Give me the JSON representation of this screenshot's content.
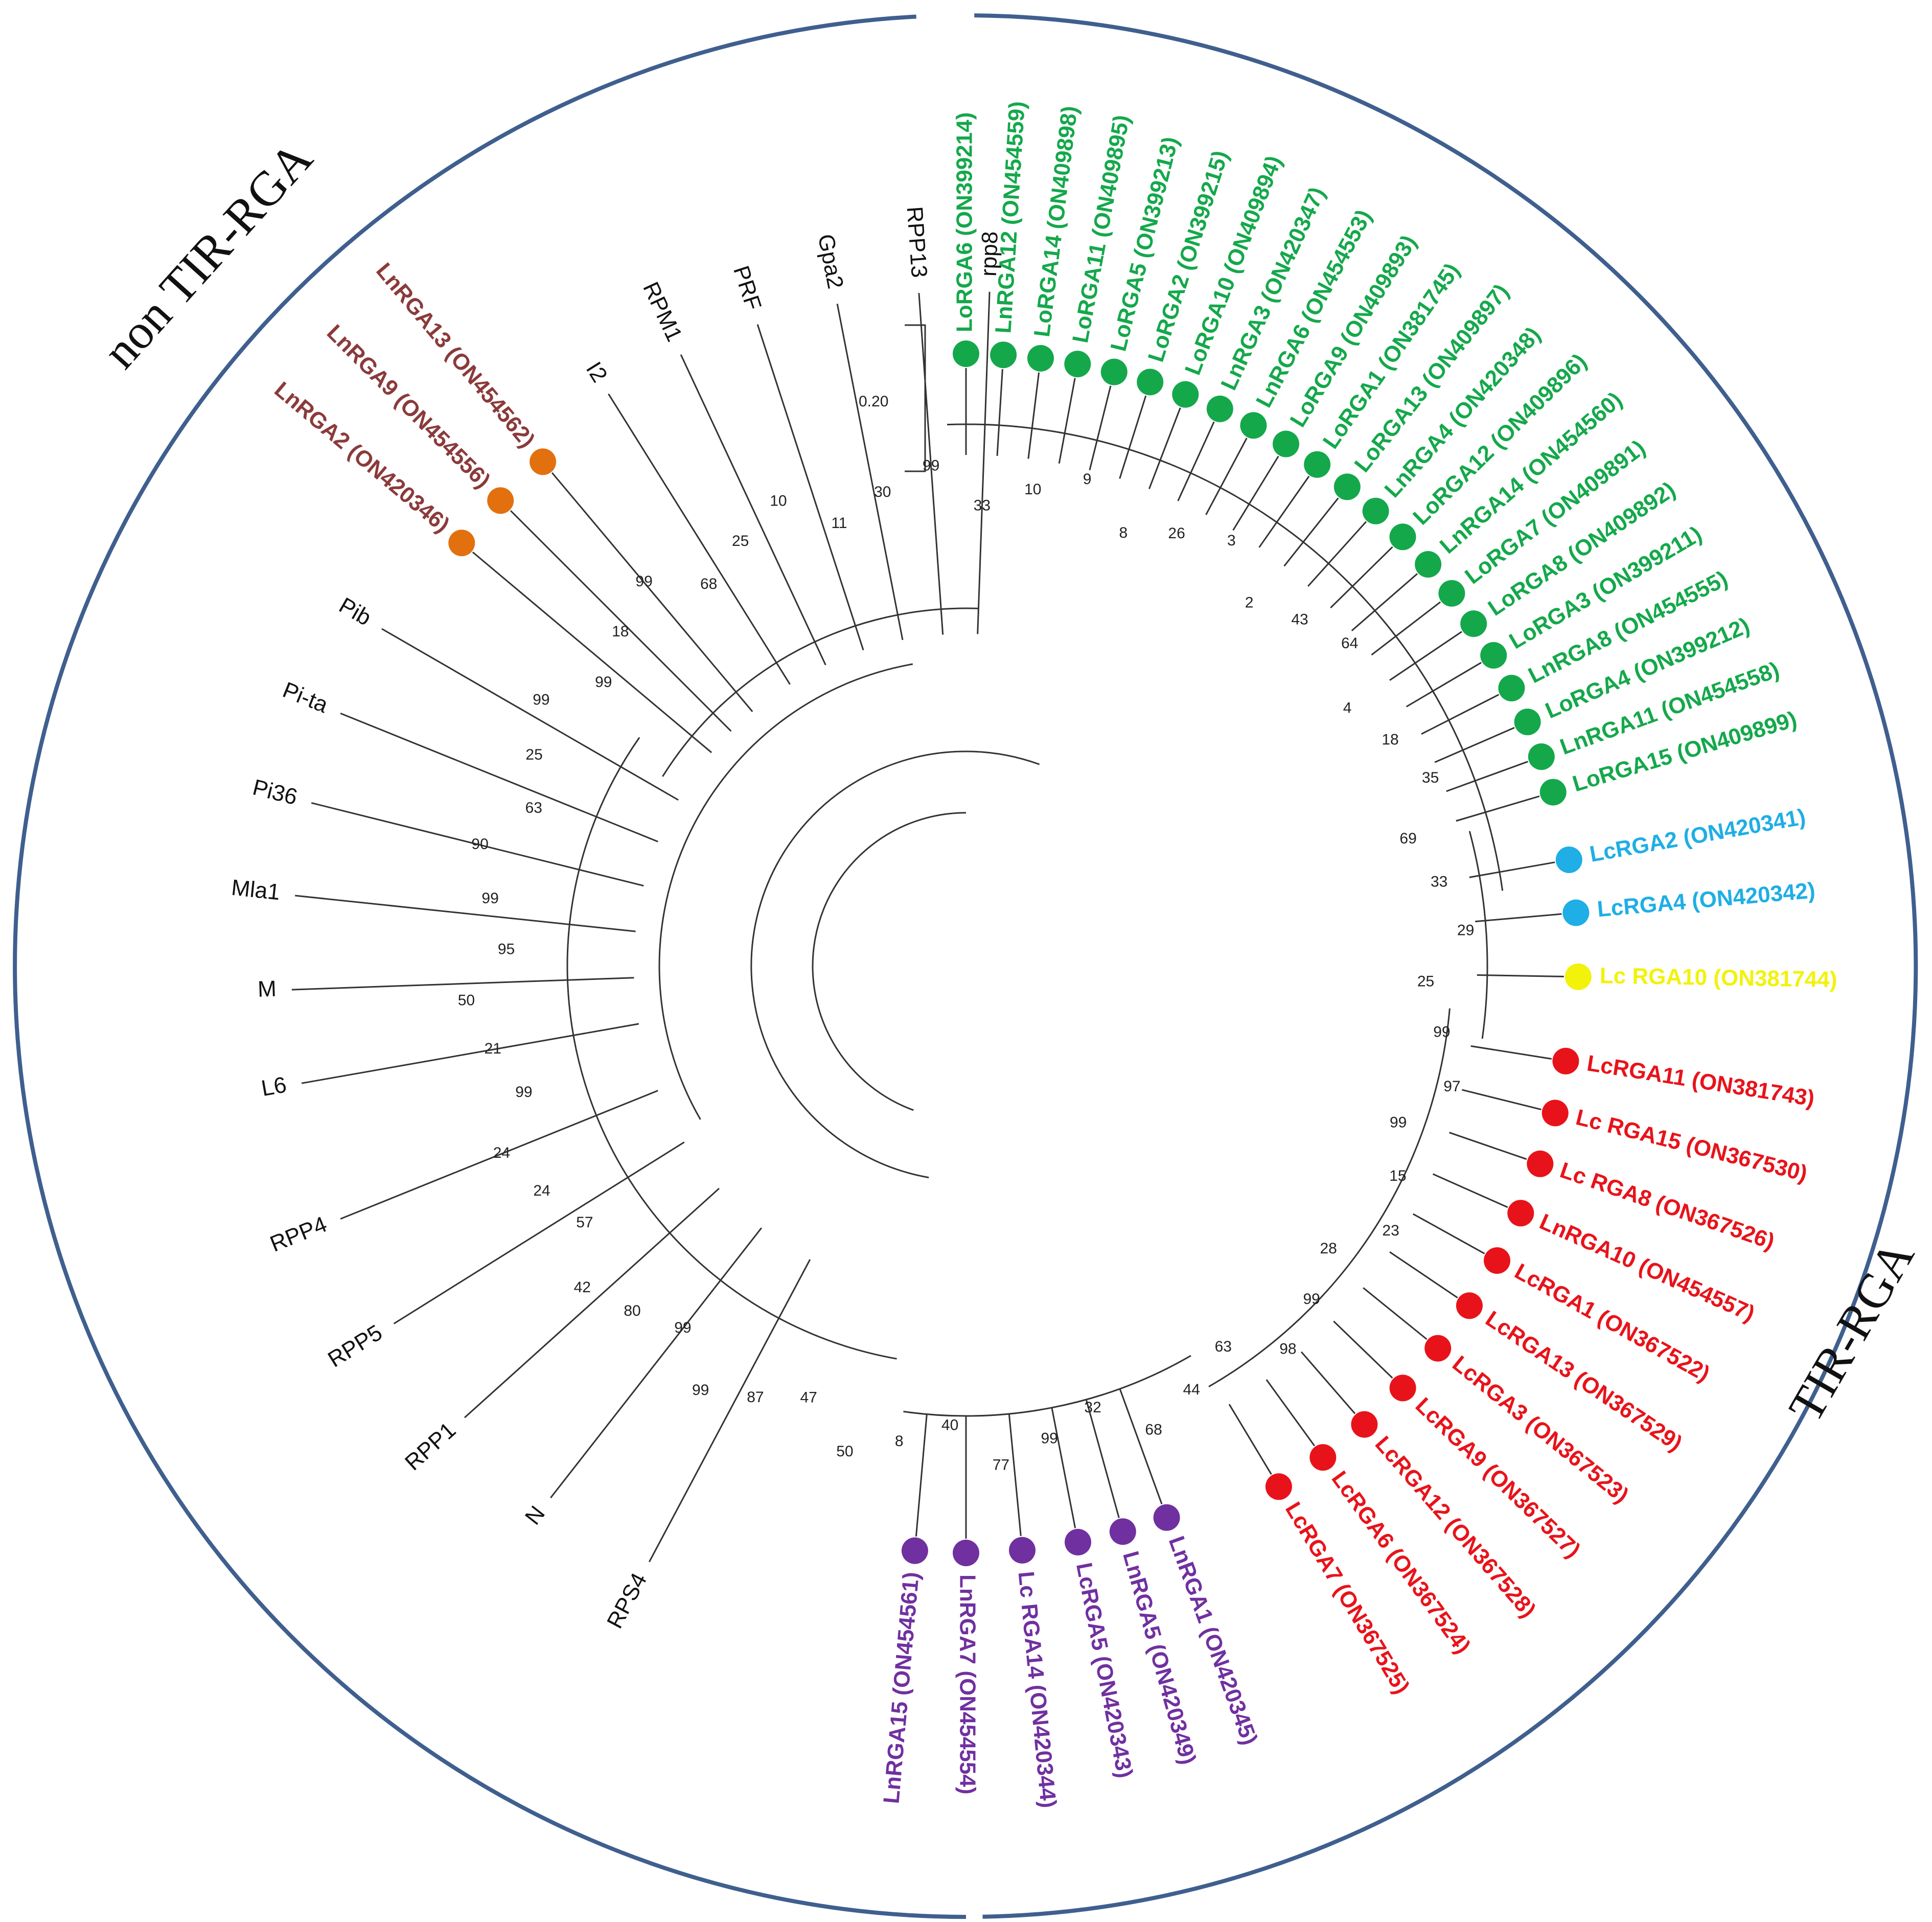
{
  "clades": {
    "non_tir": "non TIR-RGA",
    "tir": "TIR-RGA"
  },
  "scale_bar": "0.20",
  "colors": {
    "ring": "#3f5f8e",
    "branch": "#333333",
    "green": "#14a84b",
    "red": "#e8131a",
    "purple": "#7030a0",
    "cyan": "#1faee5",
    "yellow": "#f2f20a",
    "brown": "#8b3a3a",
    "orange": "#e3700e",
    "black": "#111111"
  },
  "leaves": [
    {
      "label": "LoRGA6 (ON399214)",
      "group": "green"
    },
    {
      "label": "LnRGA12 (ON454559)",
      "group": "green"
    },
    {
      "label": "LoRGA14 (ON409898)",
      "group": "green"
    },
    {
      "label": "LoRGA11 (ON409895)",
      "group": "green"
    },
    {
      "label": "LoRGA5 (ON399213)",
      "group": "green"
    },
    {
      "label": "LoRGA2 (ON399215)",
      "group": "green"
    },
    {
      "label": "LoRGA10 (ON409894)",
      "group": "green"
    },
    {
      "label": "LnRGA3 (ON420347)",
      "group": "green"
    },
    {
      "label": "LnRGA6 (ON454553)",
      "group": "green"
    },
    {
      "label": "LoRGA9 (ON409893)",
      "group": "green"
    },
    {
      "label": "LoRGA1 (ON381745)",
      "group": "green"
    },
    {
      "label": "LoRGA13 (ON409897)",
      "group": "green"
    },
    {
      "label": "LnRGA4 (ON420348)",
      "group": "green"
    },
    {
      "label": "LoRGA12 (ON409896)",
      "group": "green"
    },
    {
      "label": "LnRGA14 (ON454560)",
      "group": "green"
    },
    {
      "label": "LoRGA7 (ON409891)",
      "group": "green"
    },
    {
      "label": "LoRGA8 (ON409892)",
      "group": "green"
    },
    {
      "label": "LoRGA3 (ON399211)",
      "group": "green"
    },
    {
      "label": "LnRGA8 (ON454555)",
      "group": "green"
    },
    {
      "label": "LoRGA4 (ON399212)",
      "group": "green"
    },
    {
      "label": "LnRGA11 (ON454558)",
      "group": "green"
    },
    {
      "label": "LoRGA15 (ON409899)",
      "group": "green"
    },
    {
      "label": "LcRGA2 (ON420341)",
      "group": "cyan"
    },
    {
      "label": "LcRGA4 (ON420342)",
      "group": "cyan"
    },
    {
      "label": "Lc RGA10 (ON381744)",
      "group": "yellow"
    },
    {
      "label": "LcRGA11 (ON381743)",
      "group": "red"
    },
    {
      "label": "Lc RGA15 (ON367530)",
      "group": "red"
    },
    {
      "label": "Lc RGA8 (ON367526)",
      "group": "red"
    },
    {
      "label": "LnRGA10 (ON454557)",
      "group": "red"
    },
    {
      "label": "LcRGA1 (ON367522)",
      "group": "red"
    },
    {
      "label": "LcRGA13 (ON367529)",
      "group": "red"
    },
    {
      "label": "LcRGA3 (ON367523)",
      "group": "red"
    },
    {
      "label": "LcRGA9 (ON367527)",
      "group": "red"
    },
    {
      "label": "LcRGA12 (ON367528)",
      "group": "red"
    },
    {
      "label": "LcRGA6 (ON367524)",
      "group": "red"
    },
    {
      "label": "LcRGA7 (ON367525)",
      "group": "red"
    },
    {
      "label": "LnRGA1 (ON420345)",
      "group": "purple"
    },
    {
      "label": "LnRGA5 (ON420349)",
      "group": "purple"
    },
    {
      "label": "LcRGA5 (ON420343)",
      "group": "purple"
    },
    {
      "label": "Lc RGA14 (ON420344)",
      "group": "purple"
    },
    {
      "label": "LnRGA7 (ON454554)",
      "group": "purple"
    },
    {
      "label": "LnRGA15 (ON454561)",
      "group": "purple"
    },
    {
      "label": "RPS4",
      "group": "black"
    },
    {
      "label": "N",
      "group": "black"
    },
    {
      "label": "RPP1",
      "group": "black"
    },
    {
      "label": "RPP5",
      "group": "black"
    },
    {
      "label": "RPP4",
      "group": "black"
    },
    {
      "label": "L6",
      "group": "black"
    },
    {
      "label": "M",
      "group": "black"
    },
    {
      "label": "Mla1",
      "group": "black"
    },
    {
      "label": "Pi36",
      "group": "black"
    },
    {
      "label": "Pi-ta",
      "group": "black"
    },
    {
      "label": "Pib",
      "group": "black"
    },
    {
      "label": "LnRGA2 (ON420346)",
      "group": "brown"
    },
    {
      "label": "LnRGA9 (ON454556)",
      "group": "brown"
    },
    {
      "label": "LnRGA13 (ON454562)",
      "group": "brown"
    },
    {
      "label": "I2",
      "group": "black"
    },
    {
      "label": "RPM1",
      "group": "black"
    },
    {
      "label": "PRF",
      "group": "black"
    },
    {
      "label": "Gpa2",
      "group": "black"
    },
    {
      "label": "RPP13",
      "group": "black"
    },
    {
      "label": "rpp8",
      "group": "black"
    }
  ],
  "bootstrap": [
    "33",
    "10",
    "9",
    "8",
    "26",
    "3",
    "2",
    "43",
    "64",
    "4",
    "18",
    "35",
    "69",
    "33",
    "29",
    "25",
    "99",
    "97",
    "99",
    "15",
    "23",
    "28",
    "99",
    "98",
    "63",
    "44",
    "68",
    "32",
    "99",
    "77",
    "40",
    "8",
    "50",
    "47",
    "87",
    "99",
    "99",
    "80",
    "42",
    "57",
    "24",
    "24",
    "99",
    "21",
    "50",
    "95",
    "99",
    "90",
    "63",
    "25",
    "99",
    "99",
    "18",
    "99",
    "68",
    "25",
    "10",
    "11",
    "30",
    "99"
  ]
}
